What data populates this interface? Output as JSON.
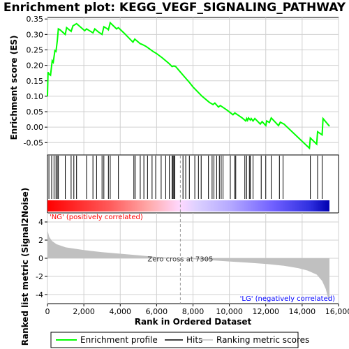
{
  "chart_data": {
    "type": "line",
    "title": "Enrichment plot: KEGG_VEGF_SIGNALING_PATHWAY",
    "top_panel": {
      "ylabel": "Enrichment score (ES)",
      "ylim": [
        -0.09,
        0.355
      ],
      "yticks": [
        -0.05,
        0.0,
        0.05,
        0.1,
        0.15,
        0.2,
        0.25,
        0.3,
        0.35
      ],
      "ytick_labels": [
        "-0.05",
        "0.00",
        "0.05",
        "0.10",
        "0.15",
        "0.20",
        "0.25",
        "0.30",
        "0.35"
      ],
      "series": [
        {
          "name": "Enrichment profile",
          "color": "#00ff00",
          "x": [
            0,
            30,
            80,
            170,
            260,
            320,
            410,
            470,
            540,
            600,
            690,
            980,
            1050,
            1300,
            1400,
            1600,
            1700,
            2050,
            2150,
            2500,
            2600,
            2700,
            2800,
            3000,
            3100,
            3300,
            3350,
            3450,
            3500,
            3800,
            3900,
            4200,
            4700,
            4800,
            5100,
            5200,
            5400,
            5500,
            5800,
            6000,
            6300,
            6700,
            6850,
            6950,
            7050,
            7500,
            7800,
            8000,
            8200,
            8500,
            8900,
            9100,
            9200,
            9400,
            9500,
            9700,
            9900,
            10200,
            10300,
            10500,
            10700,
            10900,
            10950,
            11000,
            11050,
            11150,
            11200,
            11300,
            11400,
            11700,
            11800,
            12000,
            12050,
            12200,
            12300,
            12700,
            12800,
            13000,
            14400,
            14450,
            14800,
            14850,
            15100,
            15150,
            15500
          ],
          "y": [
            0.1,
            0.178,
            0.172,
            0.168,
            0.215,
            0.21,
            0.248,
            0.245,
            0.28,
            0.318,
            0.315,
            0.3,
            0.322,
            0.31,
            0.328,
            0.335,
            0.33,
            0.312,
            0.318,
            0.305,
            0.318,
            0.313,
            0.308,
            0.3,
            0.325,
            0.318,
            0.315,
            0.338,
            0.335,
            0.318,
            0.322,
            0.305,
            0.275,
            0.285,
            0.27,
            0.268,
            0.262,
            0.258,
            0.245,
            0.238,
            0.225,
            0.205,
            0.196,
            0.198,
            0.196,
            0.165,
            0.145,
            0.13,
            0.118,
            0.1,
            0.08,
            0.073,
            0.078,
            0.065,
            0.07,
            0.062,
            0.054,
            0.04,
            0.046,
            0.038,
            0.03,
            0.02,
            0.028,
            0.022,
            0.03,
            0.023,
            0.028,
            0.02,
            0.028,
            0.01,
            0.018,
            0.005,
            0.02,
            0.015,
            0.03,
            0.005,
            0.016,
            0.01,
            -0.068,
            -0.035,
            -0.055,
            -0.015,
            -0.025,
            0.028,
            0.003
          ]
        }
      ]
    },
    "hits_panel": {
      "hits_series_name": "Hits",
      "hit_ranks": [
        80,
        230,
        360,
        470,
        540,
        600,
        980,
        1300,
        1450,
        1600,
        2150,
        2500,
        2700,
        3000,
        3100,
        3350,
        3450,
        3900,
        4750,
        4820,
        5100,
        5300,
        5500,
        5750,
        5950,
        6250,
        6500,
        6700,
        6850,
        6900,
        6950,
        7000,
        7450,
        7600,
        7800,
        8100,
        8300,
        8450,
        8850,
        9050,
        9150,
        9300,
        9450,
        9550,
        9650,
        10050,
        10300,
        10350,
        10850,
        10950,
        11100,
        11150,
        11300,
        11750,
        12000,
        12300,
        12750,
        12950,
        14450,
        14850,
        15100
      ]
    },
    "metric_panel": {
      "ylabel": "Ranked list metric (Signal2Noise)",
      "ylim": [
        -5.0,
        5.0
      ],
      "yticks": [
        -4,
        -2,
        0,
        2,
        4
      ],
      "ytick_labels": [
        "-4",
        "-2",
        "0",
        "2",
        "4"
      ],
      "series_name": "Ranking metric scores",
      "x": [
        0,
        100,
        250,
        500,
        1000,
        2000,
        3000,
        4000,
        5000,
        6000,
        7000,
        7305,
        8000,
        9000,
        10000,
        11000,
        12000,
        13000,
        13800,
        14300,
        14800,
        15100,
        15300,
        15400,
        15500
      ],
      "y": [
        3.1,
        2.35,
        1.9,
        1.55,
        1.2,
        0.9,
        0.68,
        0.5,
        0.32,
        0.15,
        0.03,
        0.0,
        -0.1,
        -0.22,
        -0.35,
        -0.48,
        -0.62,
        -0.82,
        -1.1,
        -1.35,
        -1.8,
        -2.5,
        -3.4,
        -4.2,
        -4.75
      ],
      "zero_cross_label": "Zero cross at 7305",
      "zero_cross_x": 7305,
      "pos_label": "'NG' (positively correlated)",
      "neg_label": "'LG' (negatively correlated)"
    },
    "xlabel": "Rank in Ordered Dataset",
    "xlim": [
      0,
      16000
    ],
    "xticks": [
      0,
      2000,
      4000,
      6000,
      8000,
      10000,
      12000,
      14000,
      16000
    ],
    "xtick_labels": [
      "0",
      "2,000",
      "4,000",
      "6,000",
      "8,000",
      "10,000",
      "12,000",
      "14,000",
      "16,000"
    ],
    "n_genes": 15500,
    "legend": {
      "placement": "bottom",
      "items": [
        {
          "label": "Enrichment profile",
          "color": "#00ff00"
        },
        {
          "label": "Hits",
          "color": "#000000"
        },
        {
          "label": "Ranking metric scores",
          "color": "#c0c0c0"
        }
      ]
    },
    "colors": {
      "profile": "#00ff00",
      "metric_fill": "#c0c0c0",
      "pos_label": "#ff0000",
      "neg_label": "#0000ff",
      "grid": "#d0d0d0"
    },
    "grid": true
  }
}
